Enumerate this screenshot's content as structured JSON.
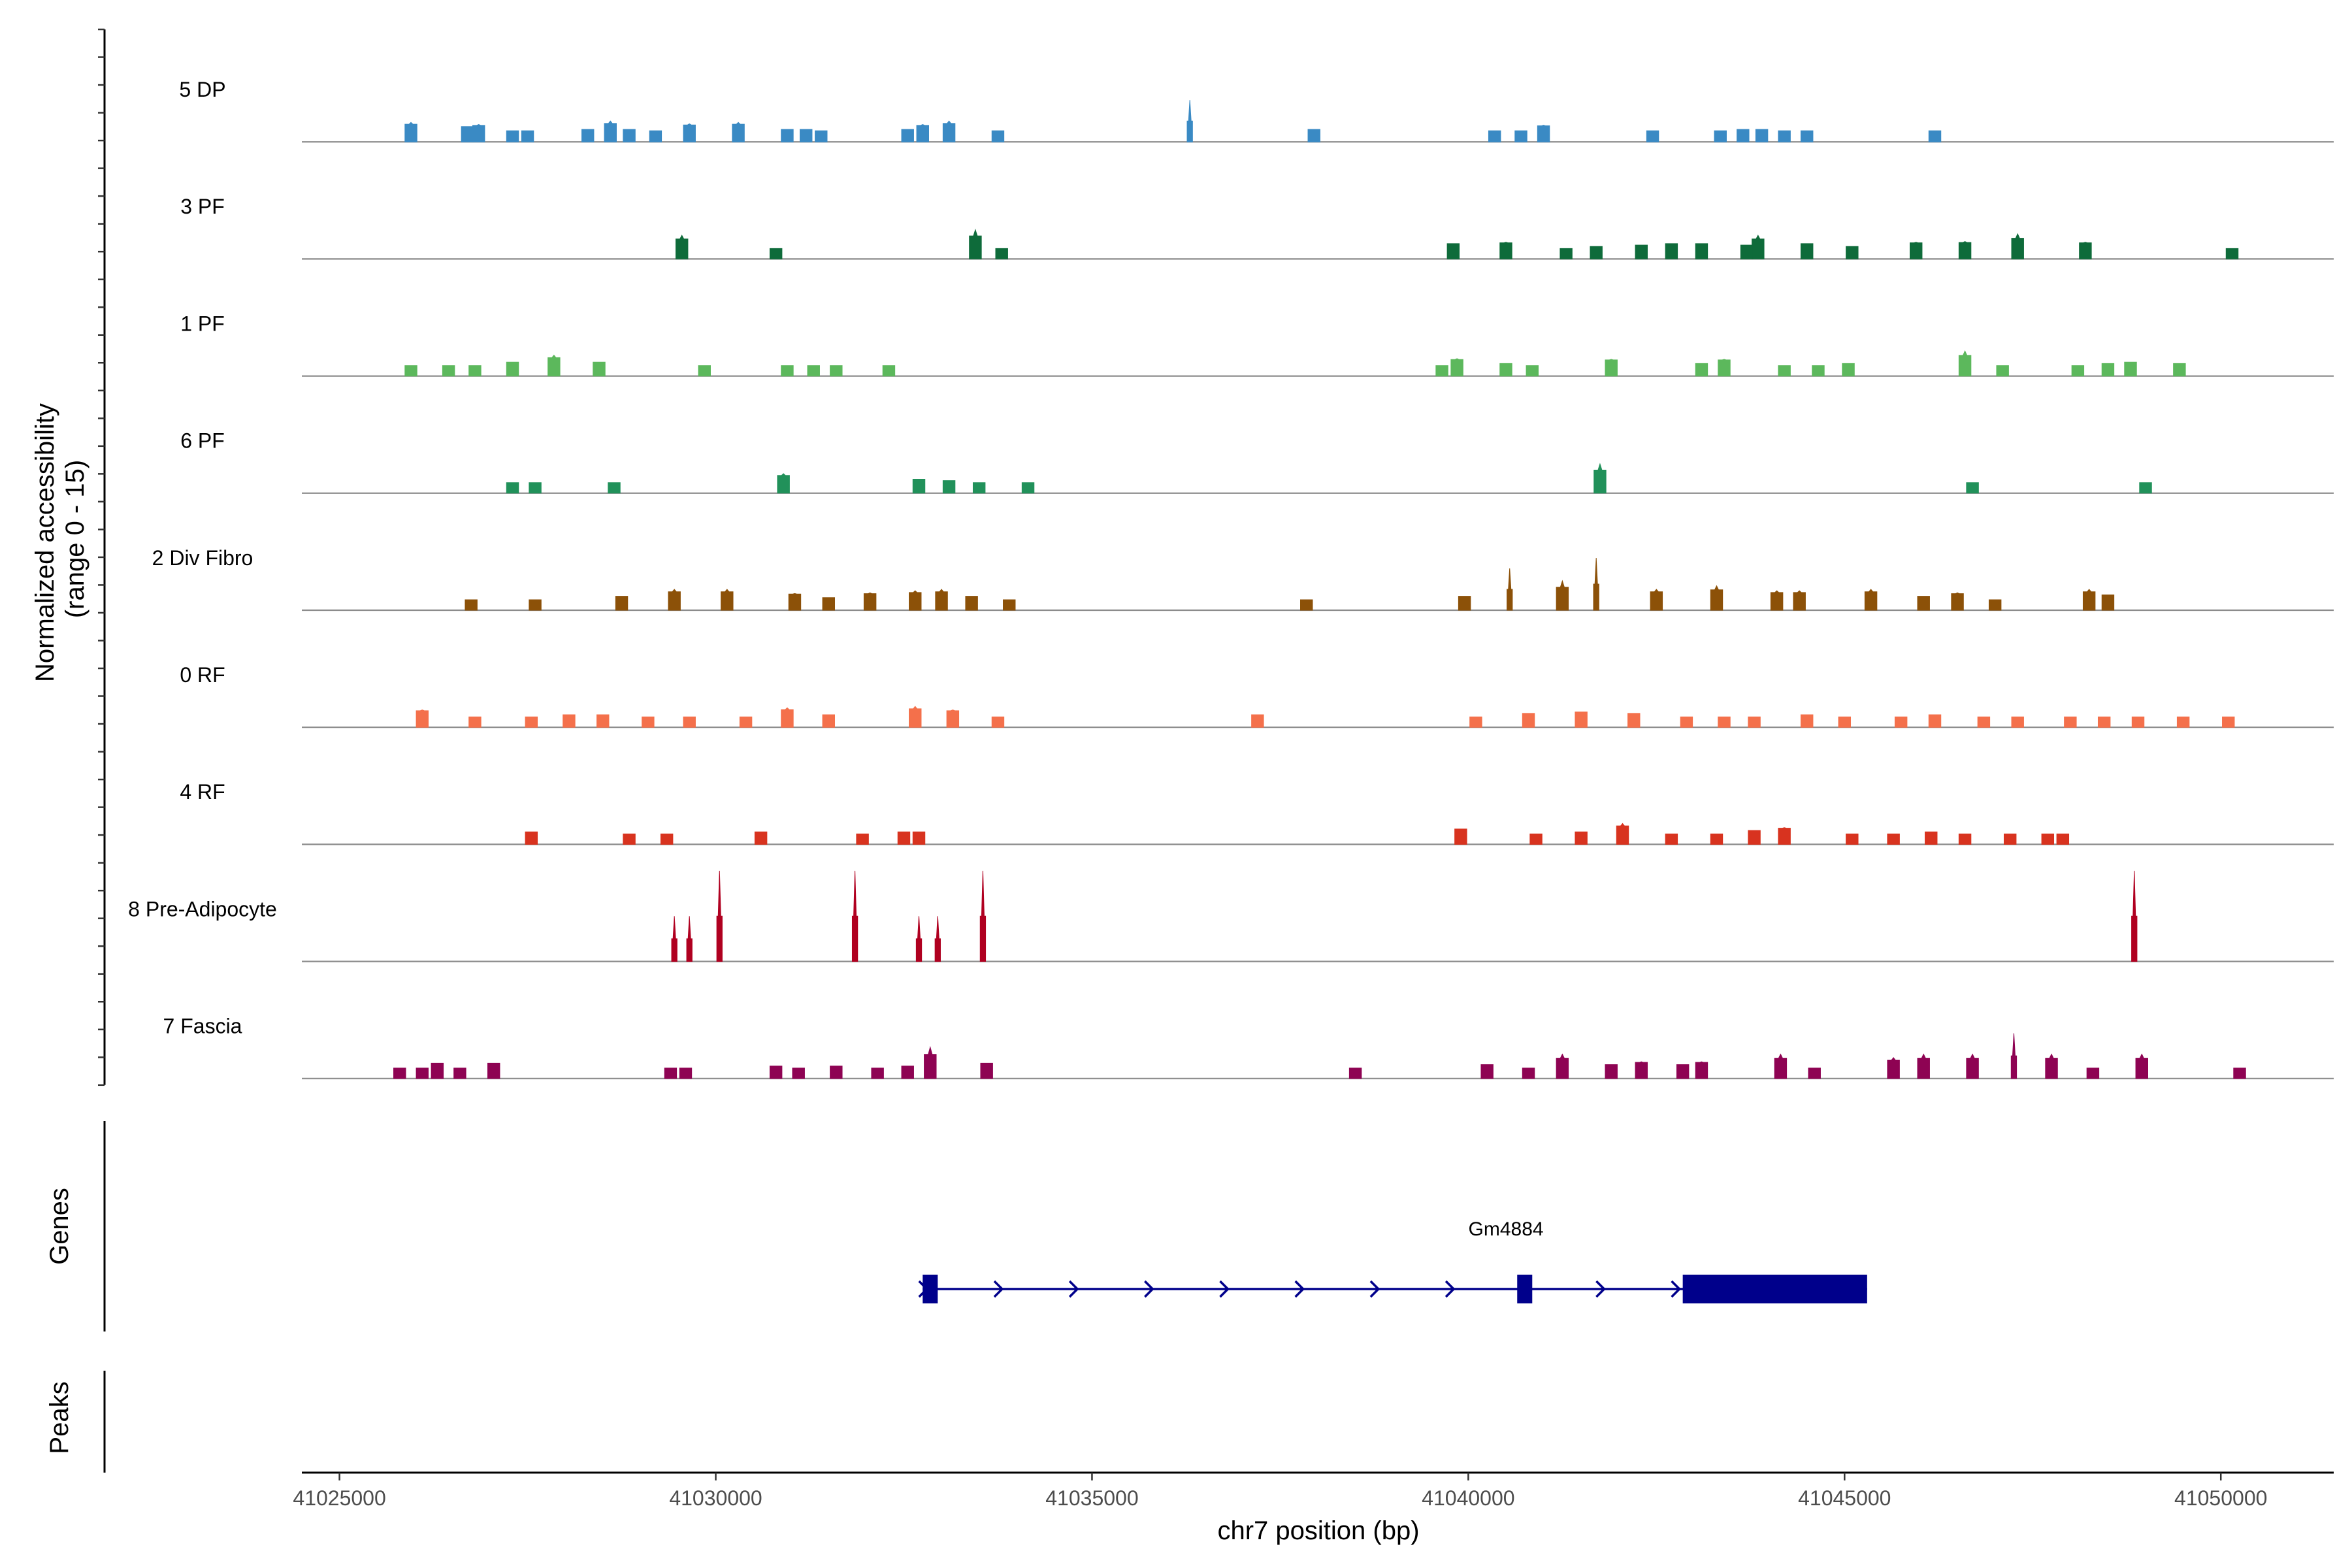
{
  "chart_data": {
    "type": "area",
    "title": "",
    "y_axis_title_line1": "Normalized accessibility",
    "y_axis_title_line2": "(range 0 - 15)",
    "ylim": [
      0,
      15
    ],
    "x_axis_title": "chr7 position (bp)",
    "xlim": [
      41024500,
      41051500
    ],
    "x_ticks": [
      41025000,
      41030000,
      41035000,
      41040000,
      41045000,
      41050000
    ],
    "x_tick_labels": [
      "41025000",
      "41030000",
      "41035000",
      "41040000",
      "41045000",
      "41050000"
    ],
    "panel_labels": {
      "genes": "Genes",
      "peaks": "Peaks"
    },
    "tracks": [
      {
        "name": "5 DP",
        "color": "#3a8ac4",
        "peaks": [
          [
            41025950,
            2.8
          ],
          [
            41026700,
            2.2
          ],
          [
            41026850,
            2.5
          ],
          [
            41027300,
            1.6
          ],
          [
            41027500,
            1.6
          ],
          [
            41028300,
            1.8
          ],
          [
            41028600,
            3.0
          ],
          [
            41028850,
            1.8
          ],
          [
            41029200,
            1.6
          ],
          [
            41029650,
            2.6
          ],
          [
            41030300,
            2.8
          ],
          [
            41030950,
            1.8
          ],
          [
            41031200,
            1.8
          ],
          [
            41031400,
            1.6
          ],
          [
            41032550,
            1.8
          ],
          [
            41032750,
            2.5
          ],
          [
            41033100,
            3.0
          ],
          [
            41033750,
            1.6
          ],
          [
            41036300,
            6.0
          ],
          [
            41037950,
            1.8
          ],
          [
            41040350,
            1.6
          ],
          [
            41040700,
            1.6
          ],
          [
            41041000,
            2.4
          ],
          [
            41042450,
            1.6
          ],
          [
            41043350,
            1.6
          ],
          [
            41043650,
            1.8
          ],
          [
            41043900,
            1.8
          ],
          [
            41044200,
            1.6
          ],
          [
            41044500,
            1.6
          ],
          [
            41046200,
            1.6
          ]
        ]
      },
      {
        "name": "3 PF",
        "color": "#0e6b3a",
        "peaks": [
          [
            41029550,
            3.4
          ],
          [
            41030800,
            1.5
          ],
          [
            41033450,
            4.2
          ],
          [
            41033800,
            1.5
          ],
          [
            41039800,
            2.2
          ],
          [
            41040500,
            2.4
          ],
          [
            41041300,
            1.5
          ],
          [
            41041700,
            1.8
          ],
          [
            41042300,
            2.0
          ],
          [
            41042700,
            2.2
          ],
          [
            41043100,
            2.2
          ],
          [
            41043700,
            2.0
          ],
          [
            41043850,
            3.4
          ],
          [
            41044500,
            2.2
          ],
          [
            41045100,
            1.8
          ],
          [
            41045950,
            2.4
          ],
          [
            41046600,
            2.5
          ],
          [
            41047300,
            3.6
          ],
          [
            41048200,
            2.4
          ],
          [
            41050150,
            1.5
          ]
        ]
      },
      {
        "name": "1 PF",
        "color": "#5cb85c",
        "peaks": [
          [
            41025950,
            1.5
          ],
          [
            41026450,
            1.5
          ],
          [
            41026800,
            1.5
          ],
          [
            41027300,
            2.0
          ],
          [
            41027850,
            3.0
          ],
          [
            41028450,
            2.0
          ],
          [
            41029850,
            1.5
          ],
          [
            41030950,
            1.5
          ],
          [
            41031300,
            1.5
          ],
          [
            41031600,
            1.5
          ],
          [
            41032300,
            1.5
          ],
          [
            41039650,
            1.5
          ],
          [
            41039850,
            2.5
          ],
          [
            41040500,
            1.8
          ],
          [
            41040850,
            1.5
          ],
          [
            41041900,
            2.4
          ],
          [
            41043100,
            1.8
          ],
          [
            41043400,
            2.4
          ],
          [
            41044200,
            1.5
          ],
          [
            41044650,
            1.5
          ],
          [
            41045050,
            1.8
          ],
          [
            41046600,
            3.6
          ],
          [
            41047100,
            1.5
          ],
          [
            41048100,
            1.5
          ],
          [
            41048500,
            1.8
          ],
          [
            41048800,
            2.0
          ],
          [
            41049450,
            1.8
          ]
        ]
      },
      {
        "name": "6 PF",
        "color": "#21915a",
        "peaks": [
          [
            41027300,
            1.5
          ],
          [
            41027600,
            1.5
          ],
          [
            41028650,
            1.5
          ],
          [
            41030900,
            2.8
          ],
          [
            41032700,
            2.0
          ],
          [
            41033100,
            1.8
          ],
          [
            41033500,
            1.5
          ],
          [
            41034150,
            1.5
          ],
          [
            41041750,
            4.2
          ],
          [
            41046700,
            1.5
          ],
          [
            41049000,
            1.5
          ]
        ]
      },
      {
        "name": "2 Div Fibro",
        "color": "#8c5108",
        "peaks": [
          [
            41026750,
            1.5
          ],
          [
            41027600,
            1.5
          ],
          [
            41028750,
            2.0
          ],
          [
            41029450,
            3.0
          ],
          [
            41030150,
            3.0
          ],
          [
            41031050,
            2.4
          ],
          [
            41031500,
            1.8
          ],
          [
            41032050,
            2.5
          ],
          [
            41032650,
            2.8
          ],
          [
            41033000,
            3.0
          ],
          [
            41033400,
            2.0
          ],
          [
            41033900,
            1.5
          ],
          [
            41037850,
            1.5
          ],
          [
            41039950,
            2.0
          ],
          [
            41040550,
            6.0
          ],
          [
            41041250,
            4.2
          ],
          [
            41041700,
            7.5
          ],
          [
            41042500,
            3.0
          ],
          [
            41043300,
            3.5
          ],
          [
            41044100,
            2.8
          ],
          [
            41044400,
            2.8
          ],
          [
            41045350,
            3.0
          ],
          [
            41046050,
            2.0
          ],
          [
            41046500,
            2.5
          ],
          [
            41047000,
            1.5
          ],
          [
            41048250,
            3.0
          ],
          [
            41048500,
            2.2
          ]
        ]
      },
      {
        "name": "0 RF",
        "color": "#f4704b",
        "peaks": [
          [
            41026100,
            2.5
          ],
          [
            41026800,
            1.5
          ],
          [
            41027550,
            1.5
          ],
          [
            41028050,
            1.8
          ],
          [
            41028500,
            1.8
          ],
          [
            41029100,
            1.5
          ],
          [
            41029650,
            1.5
          ],
          [
            41030400,
            1.5
          ],
          [
            41030950,
            2.8
          ],
          [
            41031500,
            1.8
          ],
          [
            41032650,
            3.0
          ],
          [
            41033150,
            2.5
          ],
          [
            41033750,
            1.5
          ],
          [
            41037200,
            1.8
          ],
          [
            41040100,
            1.5
          ],
          [
            41040800,
            2.0
          ],
          [
            41041500,
            2.2
          ],
          [
            41042200,
            2.0
          ],
          [
            41042900,
            1.5
          ],
          [
            41043400,
            1.5
          ],
          [
            41043800,
            1.5
          ],
          [
            41044500,
            1.8
          ],
          [
            41045000,
            1.5
          ],
          [
            41045750,
            1.5
          ],
          [
            41046200,
            1.8
          ],
          [
            41046850,
            1.5
          ],
          [
            41047300,
            1.5
          ],
          [
            41048000,
            1.5
          ],
          [
            41048450,
            1.5
          ],
          [
            41048900,
            1.5
          ],
          [
            41049500,
            1.5
          ],
          [
            41050100,
            1.5
          ]
        ]
      },
      {
        "name": "4 RF",
        "color": "#d8331f",
        "peaks": [
          [
            41027550,
            1.8
          ],
          [
            41028850,
            1.5
          ],
          [
            41029350,
            1.5
          ],
          [
            41030600,
            1.8
          ],
          [
            41031950,
            1.5
          ],
          [
            41032500,
            1.8
          ],
          [
            41032700,
            1.8
          ],
          [
            41039900,
            2.2
          ],
          [
            41040900,
            1.5
          ],
          [
            41041500,
            1.8
          ],
          [
            41042050,
            3.0
          ],
          [
            41042700,
            1.5
          ],
          [
            41043300,
            1.5
          ],
          [
            41043800,
            2.0
          ],
          [
            41044200,
            2.4
          ],
          [
            41045100,
            1.5
          ],
          [
            41045650,
            1.5
          ],
          [
            41046150,
            1.8
          ],
          [
            41046600,
            1.5
          ],
          [
            41047200,
            1.5
          ],
          [
            41047700,
            1.5
          ],
          [
            41047900,
            1.5
          ]
        ]
      },
      {
        "name": "8 Pre-Adipocyte",
        "color": "#b00020",
        "peaks": [
          [
            41029450,
            6.5
          ],
          [
            41029650,
            6.5
          ],
          [
            41030050,
            13.0
          ],
          [
            41031850,
            13.0
          ],
          [
            41032700,
            6.5
          ],
          [
            41032950,
            6.5
          ],
          [
            41033550,
            13.0
          ],
          [
            41048850,
            13.0
          ]
        ]
      },
      {
        "name": "7 Fascia",
        "color": "#8e0353",
        "peaks": [
          [
            41025800,
            1.5
          ],
          [
            41026100,
            1.5
          ],
          [
            41026300,
            2.2
          ],
          [
            41026600,
            1.5
          ],
          [
            41027050,
            2.2
          ],
          [
            41029400,
            1.5
          ],
          [
            41029600,
            1.5
          ],
          [
            41030800,
            1.8
          ],
          [
            41031100,
            1.5
          ],
          [
            41031600,
            1.8
          ],
          [
            41032150,
            1.5
          ],
          [
            41032550,
            1.8
          ],
          [
            41032850,
            4.5
          ],
          [
            41033600,
            2.2
          ],
          [
            41038500,
            1.5
          ],
          [
            41040250,
            2.0
          ],
          [
            41040800,
            1.5
          ],
          [
            41041250,
            3.5
          ],
          [
            41041900,
            2.0
          ],
          [
            41042300,
            2.4
          ],
          [
            41042850,
            2.0
          ],
          [
            41043100,
            2.4
          ],
          [
            41044150,
            3.5
          ],
          [
            41044600,
            1.5
          ],
          [
            41045650,
            3.0
          ],
          [
            41046050,
            3.5
          ],
          [
            41046700,
            3.5
          ],
          [
            41047250,
            6.5
          ],
          [
            41047750,
            3.5
          ],
          [
            41048300,
            1.5
          ],
          [
            41048950,
            3.5
          ],
          [
            41050250,
            1.5
          ]
        ]
      }
    ],
    "gene": {
      "name": "Gm4884",
      "start": 41032750,
      "end": 41045300,
      "strand": "+",
      "exons": [
        [
          41032750,
          41032950
        ],
        [
          41040650,
          41040850
        ],
        [
          41042850,
          41045300
        ]
      ],
      "color": "#00008b"
    }
  }
}
